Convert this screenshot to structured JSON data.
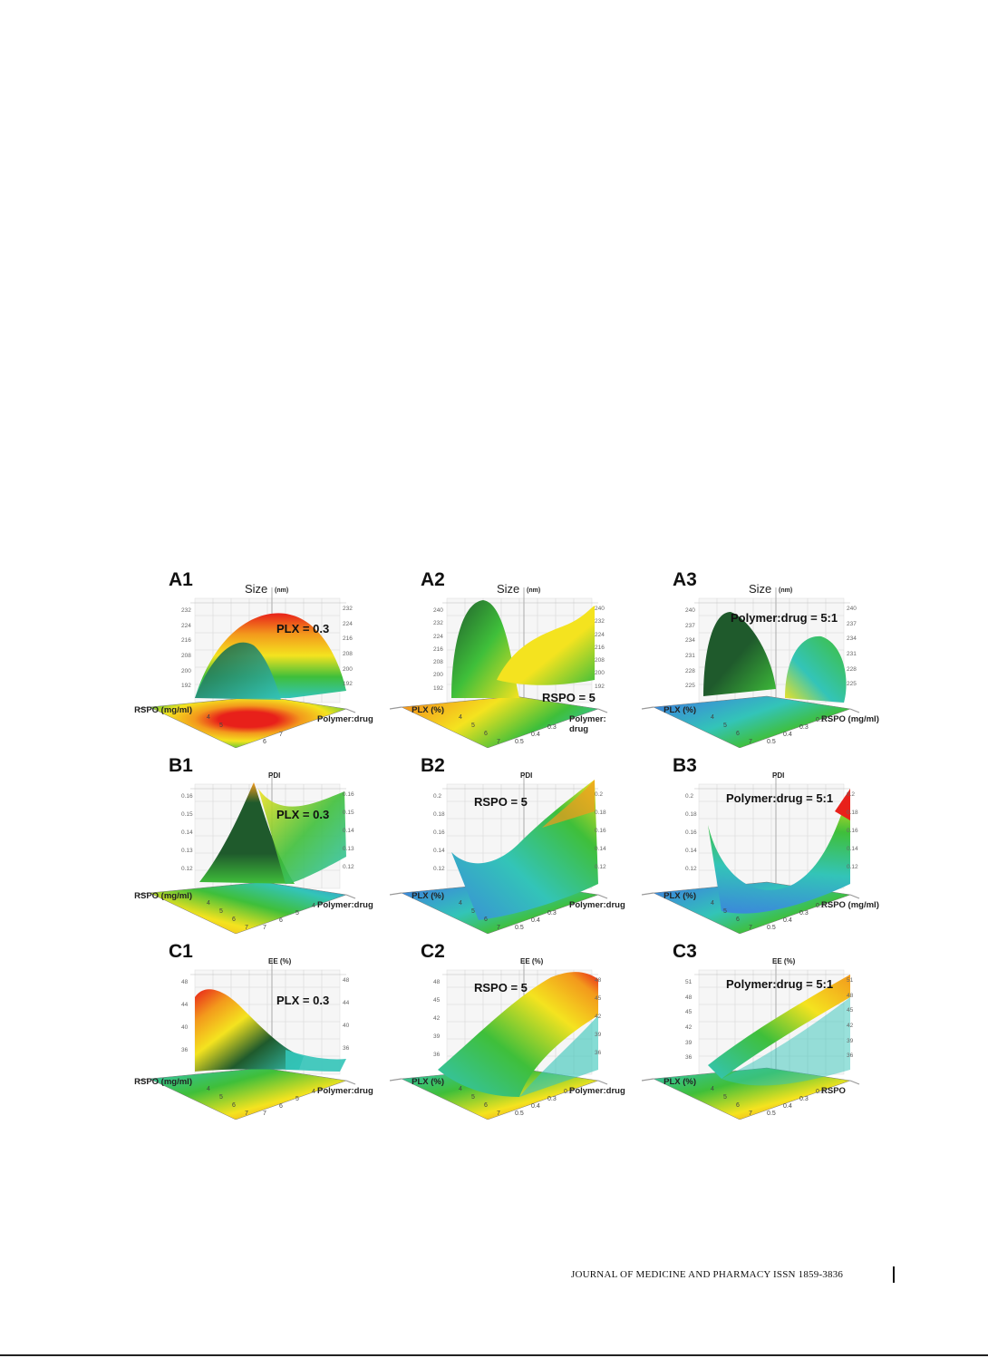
{
  "figure": {
    "panels": [
      {
        "id": "A1",
        "label": "A1",
        "z_label": "Size",
        "z_unit": "(nm)",
        "fixed": "PLX = 0.3",
        "axis_left": "RSPO (mg/ml)",
        "axis_right": "Polymer:drug",
        "left_ticks": [
          "232",
          "224",
          "216",
          "208",
          "200",
          "192"
        ],
        "right_ticks": [
          "232",
          "224",
          "216",
          "208",
          "200",
          "192"
        ],
        "base_ticks": [
          "4",
          "5",
          "6",
          "7"
        ],
        "surface": "dome",
        "floor": "hotcenter"
      },
      {
        "id": "A2",
        "label": "A2",
        "z_label": "Size",
        "z_unit": "(nm)",
        "fixed": "RSPO = 5",
        "axis_left": "PLX (%)",
        "axis_right": "Polymer:\ndrug",
        "left_ticks": [
          "240",
          "232",
          "224",
          "216",
          "208",
          "200",
          "192"
        ],
        "right_ticks": [
          "240",
          "232",
          "224",
          "216",
          "208",
          "200",
          "192"
        ],
        "base_ticks": [
          "4",
          "5",
          "6",
          "7",
          "0.5",
          "0.4",
          "0.3"
        ],
        "surface": "saddle",
        "floor": "warmleft"
      },
      {
        "id": "A3",
        "label": "A3",
        "z_label": "Size",
        "z_unit": "(nm)",
        "fixed": "Polymer:drug = 5:1",
        "axis_left": "PLX (%)",
        "axis_right": "RSPO (mg/ml)",
        "left_ticks": [
          "240",
          "237",
          "234",
          "231",
          "228",
          "225"
        ],
        "right_ticks": [
          "240",
          "237",
          "234",
          "231",
          "228",
          "225"
        ],
        "base_ticks": [
          "4",
          "5",
          "6",
          "7",
          "0.5",
          "0.4",
          "0.3",
          "0.2"
        ],
        "surface": "twist",
        "floor": "cool"
      },
      {
        "id": "B1",
        "label": "B1",
        "z_label": "PDI",
        "z_unit": "",
        "fixed": "PLX = 0.3",
        "axis_left": "RSPO (mg/ml)",
        "axis_right": "Polymer:drug",
        "left_ticks": [
          "0.16",
          "0.15",
          "0.14",
          "0.13",
          "0.12"
        ],
        "right_ticks": [
          "0.16",
          "0.15",
          "0.14",
          "0.13",
          "0.12"
        ],
        "base_ticks": [
          "4",
          "5",
          "6",
          "7",
          "7",
          "6",
          "5",
          "4"
        ],
        "surface": "peak",
        "floor": "mixed"
      },
      {
        "id": "B2",
        "label": "B2",
        "z_label": "PDI",
        "z_unit": "",
        "fixed": "RSPO = 5",
        "axis_left": "PLX (%)",
        "axis_right": "Polymer:drug",
        "left_ticks": [
          "0.2",
          "0.18",
          "0.16",
          "0.14",
          "0.12"
        ],
        "right_ticks": [
          "0.2",
          "0.18",
          "0.16",
          "0.14",
          "0.12"
        ],
        "base_ticks": [
          "4",
          "5",
          "6",
          "7",
          "0.5",
          "0.4",
          "0.3"
        ],
        "surface": "bowlright",
        "floor": "cool"
      },
      {
        "id": "B3",
        "label": "B3",
        "z_label": "PDI",
        "z_unit": "",
        "fixed": "Polymer:drug = 5:1",
        "axis_left": "PLX (%)",
        "axis_right": "RSPO (mg/ml)",
        "left_ticks": [
          "0.2",
          "0.18",
          "0.16",
          "0.14",
          "0.12"
        ],
        "right_ticks": [
          "0.2",
          "0.18",
          "0.16",
          "0.14",
          "0.12"
        ],
        "base_ticks": [
          "4",
          "5",
          "6",
          "7",
          "0.5",
          "0.4",
          "0.3",
          "0.2"
        ],
        "surface": "bowl",
        "floor": "cool"
      },
      {
        "id": "C1",
        "label": "C1",
        "z_label": "EE (%)",
        "z_unit": "",
        "fixed": "PLX = 0.3",
        "axis_left": "RSPO (mg/ml)",
        "axis_right": "Polymer:drug",
        "left_ticks": [
          "48",
          "44",
          "40",
          "36"
        ],
        "right_ticks": [
          "48",
          "44",
          "40",
          "36"
        ],
        "base_ticks": [
          "4",
          "5",
          "6",
          "7",
          "7",
          "6",
          "5",
          "4"
        ],
        "surface": "slopedown",
        "floor": "warmright"
      },
      {
        "id": "C2",
        "label": "C2",
        "z_label": "EE (%)",
        "z_unit": "",
        "fixed": "RSPO = 5",
        "axis_left": "PLX (%)",
        "axis_right": "Polymer:drug",
        "left_ticks": [
          "48",
          "45",
          "42",
          "39",
          "36"
        ],
        "right_ticks": [
          "48",
          "45",
          "42",
          "39",
          "36"
        ],
        "base_ticks": [
          "4",
          "5",
          "6",
          "7",
          "0.5",
          "0.4",
          "0.3",
          "0.2"
        ],
        "surface": "sloperight",
        "floor": "warmright"
      },
      {
        "id": "C3",
        "label": "C3",
        "z_label": "EE (%)",
        "z_unit": "",
        "fixed": "Polymer:drug = 5:1",
        "axis_left": "PLX (%)",
        "axis_right": "RSPO",
        "left_ticks": [
          "51",
          "48",
          "45",
          "42",
          "39",
          "36"
        ],
        "right_ticks": [
          "51",
          "48",
          "45",
          "42",
          "39",
          "36"
        ],
        "base_ticks": [
          "4",
          "5",
          "6",
          "7",
          "0.5",
          "0.4",
          "0.3",
          "0.2"
        ],
        "surface": "rampright",
        "floor": "warmright"
      }
    ]
  },
  "footer": {
    "journal": "JOURNAL OF MEDICINE AND PHARMACY ISSN 1859-3836"
  },
  "colors": {
    "red": "#e8201a",
    "orange": "#f39a1c",
    "yellow": "#f4e31f",
    "green": "#3fbf3a",
    "teal": "#33c4b8",
    "blue": "#3a8cd8",
    "darkgreen": "#1f5a2c"
  }
}
